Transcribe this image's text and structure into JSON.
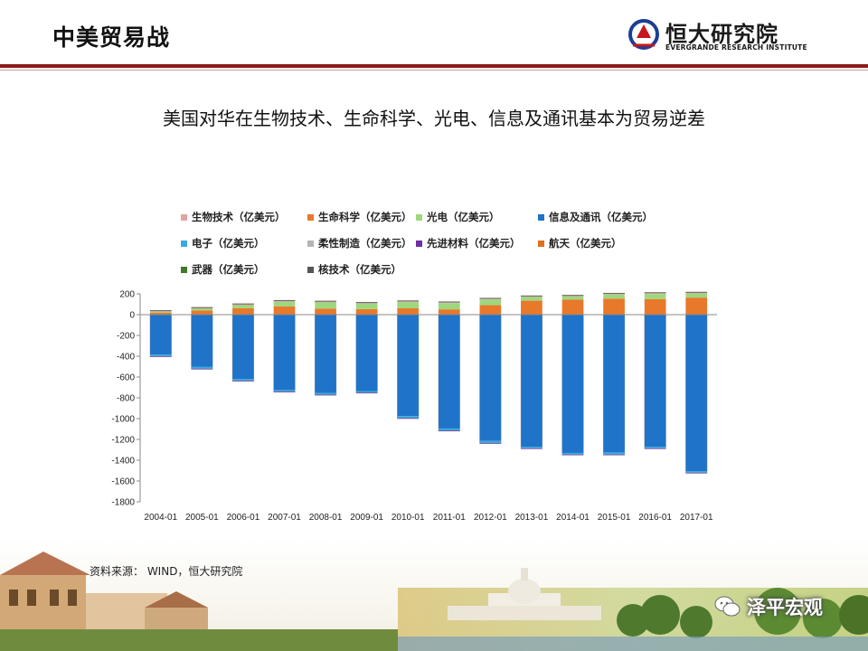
{
  "header": {
    "title": "中美贸易战",
    "logo_cn": "恒大研究院",
    "logo_en": "EVERGRANDE RESEARCH INSTITUTE"
  },
  "footer": {
    "source": "资料来源： WIND，恒大研究院",
    "wechat": "泽平宏观"
  },
  "chart_data": {
    "type": "bar",
    "stacked": true,
    "title": "美国对华在生物技术、生命科学、光电、信息及通讯基本为贸易逆差",
    "categories": [
      "2004-01",
      "2005-01",
      "2006-01",
      "2007-01",
      "2008-01",
      "2009-01",
      "2010-01",
      "2011-01",
      "2012-01",
      "2013-01",
      "2014-01",
      "2015-01",
      "2016-01",
      "2017-01"
    ],
    "ylim": [
      -1800,
      200
    ],
    "yticks": [
      200,
      0,
      -200,
      -400,
      -600,
      -800,
      -1000,
      -1200,
      -1400,
      -1600,
      -1800
    ],
    "legend_position": "top",
    "series": [
      {
        "name": "生物技术（亿美元）",
        "color": "#e4a3a3",
        "values": [
          2,
          2,
          3,
          3,
          3,
          3,
          3,
          3,
          3,
          4,
          4,
          4,
          4,
          4
        ]
      },
      {
        "name": "生命科学（亿美元）",
        "color": "#e8782a",
        "values": [
          18,
          38,
          60,
          75,
          55,
          50,
          58,
          48,
          88,
          130,
          140,
          150,
          145,
          160
        ]
      },
      {
        "name": "光电（亿美元）",
        "color": "#9fd77d",
        "values": [
          10,
          20,
          30,
          45,
          60,
          55,
          60,
          60,
          55,
          35,
          30,
          40,
          50,
          40
        ]
      },
      {
        "name": "信息及通讯（亿美元）",
        "color": "#1f73c9",
        "values": [
          -385,
          -500,
          -620,
          -725,
          -755,
          -735,
          -975,
          -1095,
          -1215,
          -1270,
          -1330,
          -1325,
          -1270,
          -1505
        ]
      },
      {
        "name": "电子（亿美元）",
        "color": "#3aa8e0",
        "values": [
          -15,
          -20,
          -15,
          -15,
          -15,
          -15,
          -20,
          -20,
          -20,
          -15,
          -15,
          -20,
          -15,
          -15
        ]
      },
      {
        "name": "柔性制造（亿美元）",
        "color": "#b4b4b4",
        "values": [
          5,
          5,
          5,
          8,
          8,
          5,
          8,
          8,
          8,
          8,
          8,
          8,
          8,
          8
        ]
      },
      {
        "name": "先进材料（亿美元）",
        "color": "#7030a0",
        "values": [
          -1,
          -1,
          -1,
          -1,
          -1,
          -1,
          -1,
          -1,
          -1,
          -1,
          -1,
          -1,
          -1,
          -1
        ]
      },
      {
        "name": "航天（亿美元）",
        "color": "#e07020",
        "values": [
          6,
          6,
          8,
          8,
          6,
          6,
          6,
          6,
          6,
          6,
          6,
          6,
          6,
          6
        ]
      },
      {
        "name": "武器（亿美元）",
        "color": "#3e7a28",
        "values": [
          0,
          0,
          0,
          0,
          0,
          0,
          0,
          0,
          0,
          0,
          0,
          0,
          0,
          0
        ]
      },
      {
        "name": "核技术（亿美元）",
        "color": "#555555",
        "values": [
          1,
          1,
          1,
          1,
          1,
          1,
          1,
          1,
          1,
          1,
          1,
          1,
          2,
          1
        ]
      }
    ]
  }
}
